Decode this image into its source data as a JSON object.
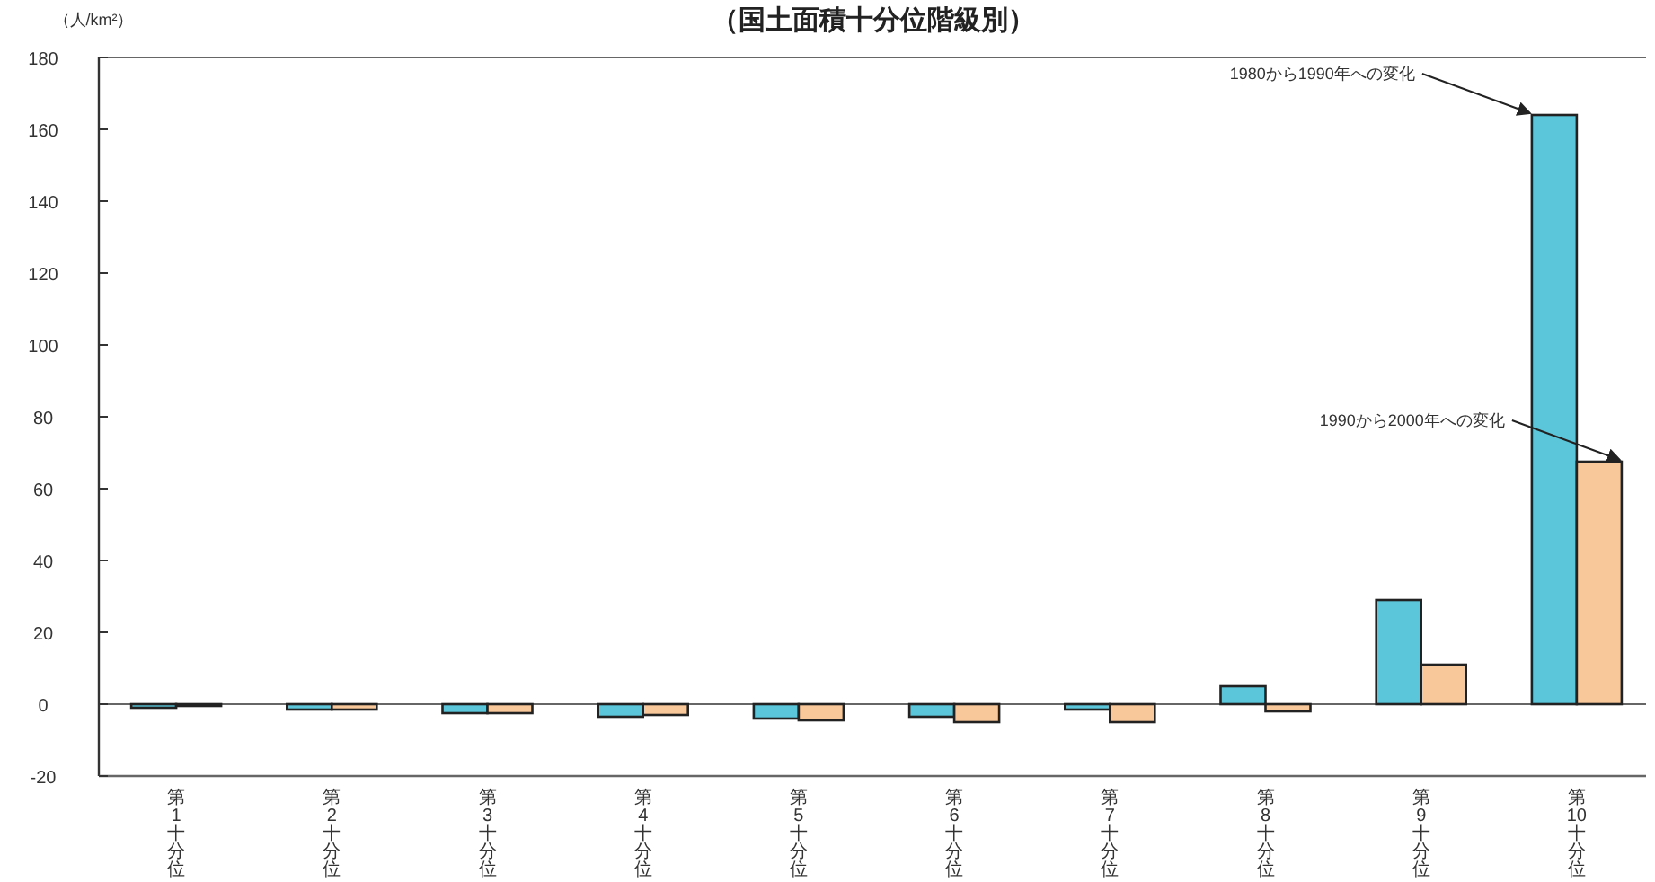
{
  "chart_data": {
    "type": "bar",
    "title": "（国土面積十分位階級別）",
    "ylabel": "（人/km²）",
    "categories": [
      "第1十分位",
      "第2十分位",
      "第3十分位",
      "第4十分位",
      "第5十分位",
      "第6十分位",
      "第7十分位",
      "第8十分位",
      "第9十分位",
      "第10十分位"
    ],
    "series": [
      {
        "name": "1980から1990年への変化",
        "color": "#5bc5d9",
        "values": [
          -1,
          -1.5,
          -2.5,
          -3.5,
          -4,
          -3.5,
          -1.5,
          5,
          29,
          164
        ]
      },
      {
        "name": "1990から2000年への変化",
        "color": "#f9c89a",
        "values": [
          -0.5,
          -1.5,
          -2.5,
          -3,
          -4.5,
          -5,
          -5,
          -2,
          11,
          67.5
        ]
      }
    ],
    "ylim": [
      -20,
      180
    ],
    "yticks": [
      -20,
      0,
      20,
      40,
      60,
      80,
      100,
      120,
      140,
      160,
      180
    ]
  }
}
